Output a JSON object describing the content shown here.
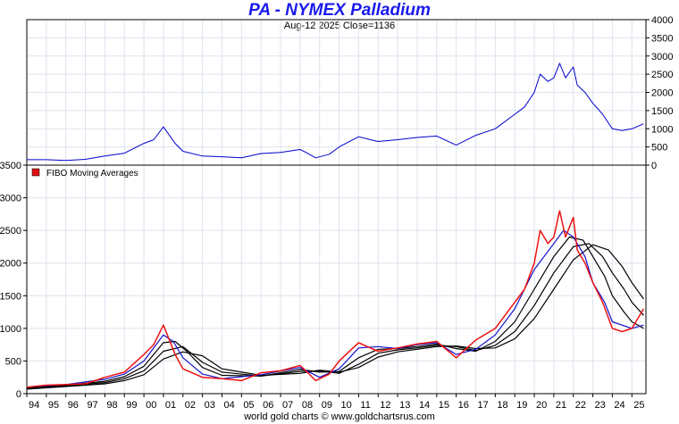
{
  "chart_data": [
    {
      "type": "line",
      "title": "PA  -  NYMEX Palladium",
      "subtitle": "Aug-12  2025   Close=1136",
      "series": [
        {
          "color": "#0000cc",
          "x": [
            1994,
            1995,
            1996,
            1997,
            1998,
            1999,
            2000,
            2000.5,
            2001,
            2001.2,
            2001.6,
            2002,
            2003,
            2004,
            2005,
            2006,
            2007,
            2008,
            2008.3,
            2008.8,
            2009.5,
            2010,
            2011,
            2011.6,
            2012,
            2013,
            2014,
            2015,
            2016,
            2017,
            2018,
            2019,
            2019.5,
            2020,
            2020.3,
            2020.7,
            2021,
            2021.3,
            2021.6,
            2022,
            2022.2,
            2022.6,
            2023,
            2023.5,
            2024,
            2024.5,
            2025,
            2025.6
          ],
          "y": [
            150,
            150,
            130,
            160,
            250,
            330,
            600,
            700,
            1050,
            900,
            600,
            380,
            250,
            230,
            200,
            320,
            350,
            430,
            350,
            200,
            300,
            500,
            780,
            700,
            650,
            700,
            760,
            800,
            550,
            820,
            1000,
            1400,
            1600,
            2000,
            2500,
            2300,
            2400,
            2800,
            2400,
            2700,
            2200,
            2000,
            1700,
            1400,
            1000,
            950,
            1000,
            1136
          ]
        }
      ],
      "ylim": [
        0,
        4000
      ],
      "yticks": [
        "0",
        "500",
        "1000",
        "1500",
        "2000",
        "2500",
        "3000",
        "3500",
        "4000"
      ],
      "grid": true
    },
    {
      "type": "line",
      "legend": "FIBO  Moving  Averages",
      "ylim": [
        0,
        3500
      ],
      "yticks": [
        "0",
        "500",
        "1000",
        "1500",
        "2000",
        "2500",
        "3000",
        "3500"
      ],
      "categories": [
        "94",
        "95",
        "96",
        "97",
        "98",
        "99",
        "00",
        "01",
        "02",
        "03",
        "04",
        "05",
        "06",
        "07",
        "08",
        "09",
        "10",
        "11",
        "12",
        "13",
        "14",
        "15",
        "16",
        "17",
        "18",
        "19",
        "20",
        "21",
        "22",
        "23",
        "24",
        "25"
      ],
      "series": [
        {
          "color": "#ee1111",
          "x": [
            1994,
            1995,
            1996,
            1997,
            1998,
            1999,
            2000,
            2000.5,
            2001,
            2001.2,
            2001.6,
            2002,
            2003,
            2004,
            2005,
            2006,
            2007,
            2008,
            2008.3,
            2008.8,
            2009.5,
            2010,
            2011,
            2011.6,
            2012,
            2013,
            2014,
            2015,
            2016,
            2017,
            2018,
            2019,
            2019.5,
            2020,
            2020.3,
            2020.7,
            2021,
            2021.3,
            2021.6,
            2022,
            2022.2,
            2022.6,
            2023,
            2023.5,
            2024,
            2024.5,
            2025,
            2025.6
          ],
          "y": [
            100,
            130,
            140,
            150,
            250,
            330,
            600,
            750,
            1050,
            900,
            600,
            380,
            250,
            230,
            200,
            320,
            350,
            430,
            350,
            200,
            300,
            500,
            780,
            700,
            650,
            700,
            760,
            800,
            550,
            820,
            1000,
            1400,
            1600,
            2000,
            2500,
            2300,
            2400,
            2800,
            2400,
            2700,
            2200,
            2000,
            1700,
            1400,
            1000,
            950,
            1000,
            1300
          ]
        },
        {
          "color": "#1111cc",
          "x": [
            1994,
            1996,
            1998,
            1999,
            2000,
            2001,
            2001.5,
            2002,
            2003,
            2004,
            2006,
            2008,
            2009,
            2010,
            2011,
            2012,
            2013,
            2014,
            2015,
            2016,
            2017,
            2018,
            2019,
            2020,
            2021,
            2021.5,
            2022,
            2022.6,
            2023,
            2023.6,
            2024,
            2025,
            2025.6
          ],
          "y": [
            100,
            140,
            220,
            300,
            500,
            900,
            800,
            550,
            300,
            230,
            290,
            400,
            250,
            380,
            700,
            720,
            690,
            750,
            780,
            600,
            680,
            900,
            1300,
            1900,
            2300,
            2500,
            2400,
            2100,
            1700,
            1400,
            1100,
            1000,
            1050
          ]
        },
        {
          "color": "#000000",
          "x": [
            1994,
            1996,
            1998,
            1999,
            2000,
            2001,
            2001.6,
            2002.2,
            2003,
            2004,
            2006,
            2008,
            2009,
            2010,
            2011,
            2012,
            2013,
            2014,
            2015,
            2016,
            2017,
            2018,
            2019,
            2020,
            2021,
            2021.8,
            2022.5,
            2023,
            2023.6,
            2024,
            2024.6,
            2025,
            2025.6
          ],
          "y": [
            90,
            130,
            190,
            260,
            420,
            780,
            800,
            650,
            400,
            280,
            270,
            370,
            330,
            340,
            550,
            680,
            690,
            720,
            760,
            690,
            650,
            800,
            1100,
            1600,
            2100,
            2400,
            2350,
            2100,
            1800,
            1500,
            1250,
            1100,
            1000
          ]
        },
        {
          "color": "#000000",
          "x": [
            1994,
            1996,
            1998,
            1999,
            2000,
            2001,
            2002,
            2002.5,
            2003,
            2004,
            2006,
            2008,
            2009,
            2010,
            2011,
            2012,
            2013,
            2014,
            2015,
            2016,
            2017,
            2018,
            2019,
            2020,
            2021,
            2022,
            2022.8,
            2023.5,
            2024,
            2024.6,
            2025,
            2025.6
          ],
          "y": [
            80,
            120,
            170,
            230,
            350,
            650,
            720,
            600,
            480,
            330,
            270,
            340,
            350,
            310,
            450,
            620,
            670,
            700,
            740,
            720,
            660,
            740,
            950,
            1350,
            1850,
            2250,
            2300,
            2100,
            1850,
            1600,
            1400,
            1200
          ]
        },
        {
          "color": "#000000",
          "x": [
            1994,
            1996,
            1998,
            1999,
            2000,
            2001,
            2002,
            2003,
            2003.5,
            2004,
            2006,
            2008,
            2009,
            2010,
            2011,
            2012,
            2013,
            2014,
            2015,
            2016,
            2017,
            2018,
            2019,
            2020,
            2021,
            2022,
            2023,
            2023.8,
            2024.5,
            2025,
            2025.6
          ],
          "y": [
            70,
            110,
            150,
            200,
            290,
            530,
            640,
            580,
            480,
            380,
            280,
            310,
            360,
            330,
            400,
            560,
            640,
            680,
            720,
            730,
            690,
            700,
            840,
            1150,
            1600,
            2050,
            2280,
            2200,
            1950,
            1700,
            1450
          ]
        }
      ],
      "grid": true
    }
  ],
  "footer": "world gold charts © www.goldchartsrus.com"
}
